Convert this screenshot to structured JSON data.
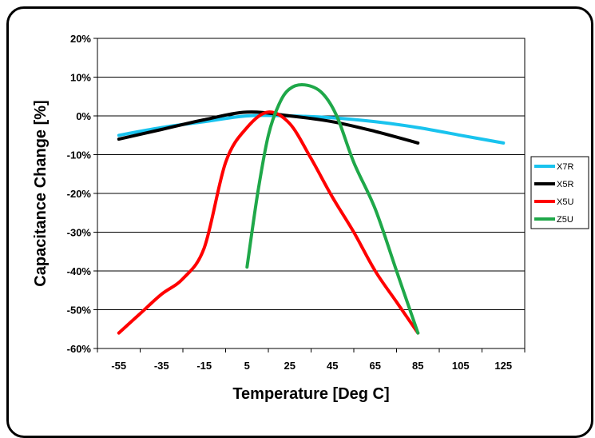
{
  "chart_data": {
    "type": "line",
    "xlabel": "Temperature [Deg C]",
    "ylabel": "Capacitance Change [%]",
    "x_ticks": [
      -55,
      -35,
      -15,
      5,
      25,
      45,
      65,
      85,
      105,
      125
    ],
    "x_range": [
      -65,
      135
    ],
    "y_ticks": [
      20,
      10,
      0,
      -10,
      -20,
      -30,
      -40,
      -50,
      -60
    ],
    "y_tick_labels": [
      "20%",
      "10%",
      "0%",
      "-10%",
      "-20%",
      "-30%",
      "-40%",
      "-50%",
      "-60%"
    ],
    "ylim": [
      -60,
      20
    ],
    "grid": "horizontal",
    "legend": "right",
    "series": [
      {
        "name": "X7R",
        "color": "#19c3ee",
        "points": [
          [
            -55,
            -5
          ],
          [
            -35,
            -3
          ],
          [
            -15,
            -1.5
          ],
          [
            5,
            0
          ],
          [
            25,
            0
          ],
          [
            45,
            -0.5
          ],
          [
            65,
            -1.5
          ],
          [
            85,
            -3
          ],
          [
            105,
            -5
          ],
          [
            125,
            -7
          ]
        ]
      },
      {
        "name": "X5R",
        "color": "#000000",
        "points": [
          [
            -55,
            -6
          ],
          [
            -35,
            -3.5
          ],
          [
            -15,
            -1
          ],
          [
            5,
            1
          ],
          [
            25,
            0
          ],
          [
            45,
            -1.5
          ],
          [
            65,
            -4
          ],
          [
            85,
            -7
          ]
        ]
      },
      {
        "name": "X5U",
        "color": "#ff0000",
        "points": [
          [
            -55,
            -56
          ],
          [
            -45,
            -51
          ],
          [
            -35,
            -46
          ],
          [
            -25,
            -42
          ],
          [
            -15,
            -34
          ],
          [
            -5,
            -12
          ],
          [
            5,
            -3
          ],
          [
            15,
            1
          ],
          [
            25,
            -2
          ],
          [
            35,
            -11
          ],
          [
            45,
            -21
          ],
          [
            55,
            -30
          ],
          [
            65,
            -40
          ],
          [
            75,
            -48
          ],
          [
            85,
            -56
          ]
        ]
      },
      {
        "name": "Z5U",
        "color": "#1fa849",
        "points": [
          [
            5,
            -39
          ],
          [
            10,
            -20
          ],
          [
            15,
            -5
          ],
          [
            20,
            3
          ],
          [
            25,
            7
          ],
          [
            32,
            8
          ],
          [
            40,
            6
          ],
          [
            47,
            0
          ],
          [
            55,
            -12
          ],
          [
            65,
            -24
          ],
          [
            75,
            -40
          ],
          [
            85,
            -56
          ]
        ]
      }
    ]
  }
}
